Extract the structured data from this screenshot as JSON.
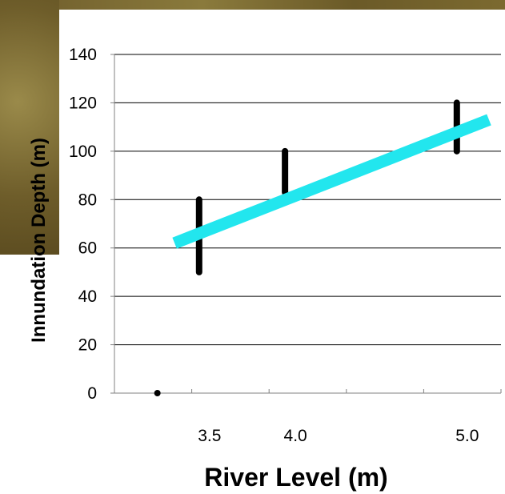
{
  "chart_data": {
    "type": "scatter",
    "title": "",
    "xlabel": "River Level (m)",
    "ylabel": "Innundation Depth (m)",
    "ylim": [
      0,
      140
    ],
    "yticks": [
      "0",
      "20",
      "40",
      "60",
      "80",
      "100",
      "120",
      "140"
    ],
    "xtick_labels": [
      "3.5",
      "4.0",
      "5.0"
    ],
    "xtick_values": [
      3.5,
      4.0,
      5.0
    ],
    "xlim": [
      2.9,
      5.15
    ],
    "grid": "horizontal",
    "ranges": [
      {
        "x": 3.5,
        "y_min": 50,
        "y_max": 80
      },
      {
        "x": 4.0,
        "y_min": 83,
        "y_max": 100
      },
      {
        "x": 5.0,
        "y_min": 100,
        "y_max": 120
      }
    ],
    "points": [
      {
        "x": 3.15,
        "y": 0
      }
    ],
    "trend_line": {
      "x": [
        3.25,
        5.08
      ],
      "y": [
        62,
        113
      ]
    },
    "colors": {
      "trend": "#22e6ee",
      "ranges": "#000000",
      "grid": "#000000",
      "axis": "#808080"
    }
  }
}
